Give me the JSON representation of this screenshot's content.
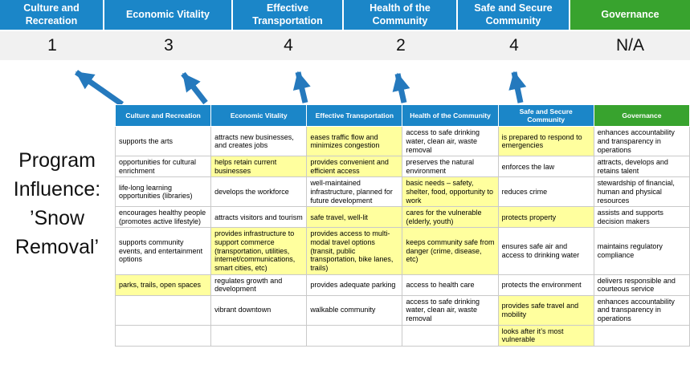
{
  "title": "Program Influence: ’Snow Removal’",
  "colors": {
    "header_blue": "#1b86c8",
    "header_green": "#38a32e",
    "score_band_gray": "#f1f1f1",
    "highlight_yellow": "#ffff9e",
    "arrow_blue": "#2579bd",
    "cell_border": "#c9c9c9"
  },
  "banner": {
    "columns": [
      {
        "label": "Culture and Recreation",
        "score": "1",
        "theme": "blue"
      },
      {
        "label": "Economic Vitality",
        "score": "3",
        "theme": "blue"
      },
      {
        "label": "Effective Transportation",
        "score": "4",
        "theme": "blue"
      },
      {
        "label": "Health of the Community",
        "score": "2",
        "theme": "blue"
      },
      {
        "label": "Safe and Secure Community",
        "score": "4",
        "theme": "blue"
      },
      {
        "label": "Governance",
        "score": "N/A",
        "theme": "green"
      }
    ]
  },
  "table": {
    "headers": [
      {
        "label": "Culture and Recreation",
        "theme": "blue"
      },
      {
        "label": "Economic Vitality",
        "theme": "blue"
      },
      {
        "label": "Effective Transportation",
        "theme": "blue"
      },
      {
        "label": "Health of the Community",
        "theme": "blue"
      },
      {
        "label": "Safe and Secure Community",
        "theme": "blue"
      },
      {
        "label": "Governance",
        "theme": "green"
      }
    ],
    "rows": [
      [
        {
          "text": "supports the arts",
          "highlight": false
        },
        {
          "text": "attracts new businesses, and creates jobs",
          "highlight": false
        },
        {
          "text": "eases traffic flow and minimizes congestion",
          "highlight": true
        },
        {
          "text": "access to safe drinking water, clean air, waste removal",
          "highlight": false
        },
        {
          "text": "is prepared to respond to emergencies",
          "highlight": true
        },
        {
          "text": "enhances accountability and transparency in operations",
          "highlight": false
        }
      ],
      [
        {
          "text": "opportunities for cultural enrichment",
          "highlight": false
        },
        {
          "text": "helps retain current businesses",
          "highlight": true
        },
        {
          "text": "provides convenient and efficient access",
          "highlight": true
        },
        {
          "text": "preserves the natural environment",
          "highlight": false
        },
        {
          "text": "enforces the law",
          "highlight": false
        },
        {
          "text": "attracts, develops and retains talent",
          "highlight": false
        }
      ],
      [
        {
          "text": "life-long learning opportunities (libraries)",
          "highlight": false
        },
        {
          "text": "develops the workforce",
          "highlight": false
        },
        {
          "text": "well-maintained infrastructure, planned for future development",
          "highlight": false
        },
        {
          "text": "basic needs – safety, shelter, food, opportunity to work",
          "highlight": true
        },
        {
          "text": "reduces crime",
          "highlight": false
        },
        {
          "text": "stewardship of financial, human and physical resources",
          "highlight": false
        }
      ],
      [
        {
          "text": "encourages healthy people (promotes active lifestyle)",
          "highlight": false
        },
        {
          "text": "attracts visitors and tourism",
          "highlight": false
        },
        {
          "text": "safe travel, well-lit",
          "highlight": true
        },
        {
          "text": "cares for the vulnerable (elderly, youth)",
          "highlight": true
        },
        {
          "text": "protects property",
          "highlight": true
        },
        {
          "text": "assists and supports decision makers",
          "highlight": false
        }
      ],
      [
        {
          "text": "supports community events, and entertainment options",
          "highlight": false
        },
        {
          "text": "provides infrastructure to support commerce (transportation, utilities, internet/communications, smart cities, etc)",
          "highlight": true
        },
        {
          "text": "provides access to multi-modal travel options (transit, public transportation, bike lanes, trails)",
          "highlight": true
        },
        {
          "text": "keeps community safe from danger (crime, disease, etc)",
          "highlight": true
        },
        {
          "text": "ensures safe air and access to drinking water",
          "highlight": false
        },
        {
          "text": "maintains regulatory compliance",
          "highlight": false
        }
      ],
      [
        {
          "text": "parks, trails, open spaces",
          "highlight": true
        },
        {
          "text": "regulates growth and development",
          "highlight": false
        },
        {
          "text": "provides adequate parking",
          "highlight": false
        },
        {
          "text": "access to health care",
          "highlight": false
        },
        {
          "text": "protects the environment",
          "highlight": false
        },
        {
          "text": "delivers responsible and courteous service",
          "highlight": false
        }
      ],
      [
        {
          "text": "",
          "highlight": false
        },
        {
          "text": "vibrant downtown",
          "highlight": false
        },
        {
          "text": "walkable community",
          "highlight": false
        },
        {
          "text": "access to safe drinking water, clean air, waste removal",
          "highlight": false
        },
        {
          "text": "provides safe travel and mobility",
          "highlight": true
        },
        {
          "text": "enhances accountability and transparency in operations",
          "highlight": false
        }
      ],
      [
        {
          "text": "",
          "highlight": false
        },
        {
          "text": "",
          "highlight": false
        },
        {
          "text": "",
          "highlight": false
        },
        {
          "text": "",
          "highlight": false
        },
        {
          "text": "looks after it’s most vulnerable",
          "highlight": true
        },
        {
          "text": "",
          "highlight": false
        }
      ]
    ]
  }
}
